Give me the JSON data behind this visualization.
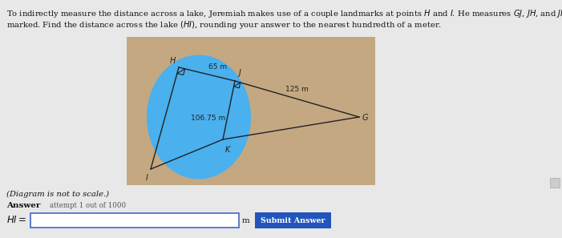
{
  "bg_color": "#e8e8e8",
  "diagram_bg": "#c4a882",
  "lake_color": "#4ab0ee",
  "label_65": "65 m",
  "label_125": "125 m",
  "label_10675": "106.75 m",
  "submit_bg": "#2255bb",
  "line_color": "#222222",
  "text_color": "#111111",
  "input_border": "#4466cc"
}
